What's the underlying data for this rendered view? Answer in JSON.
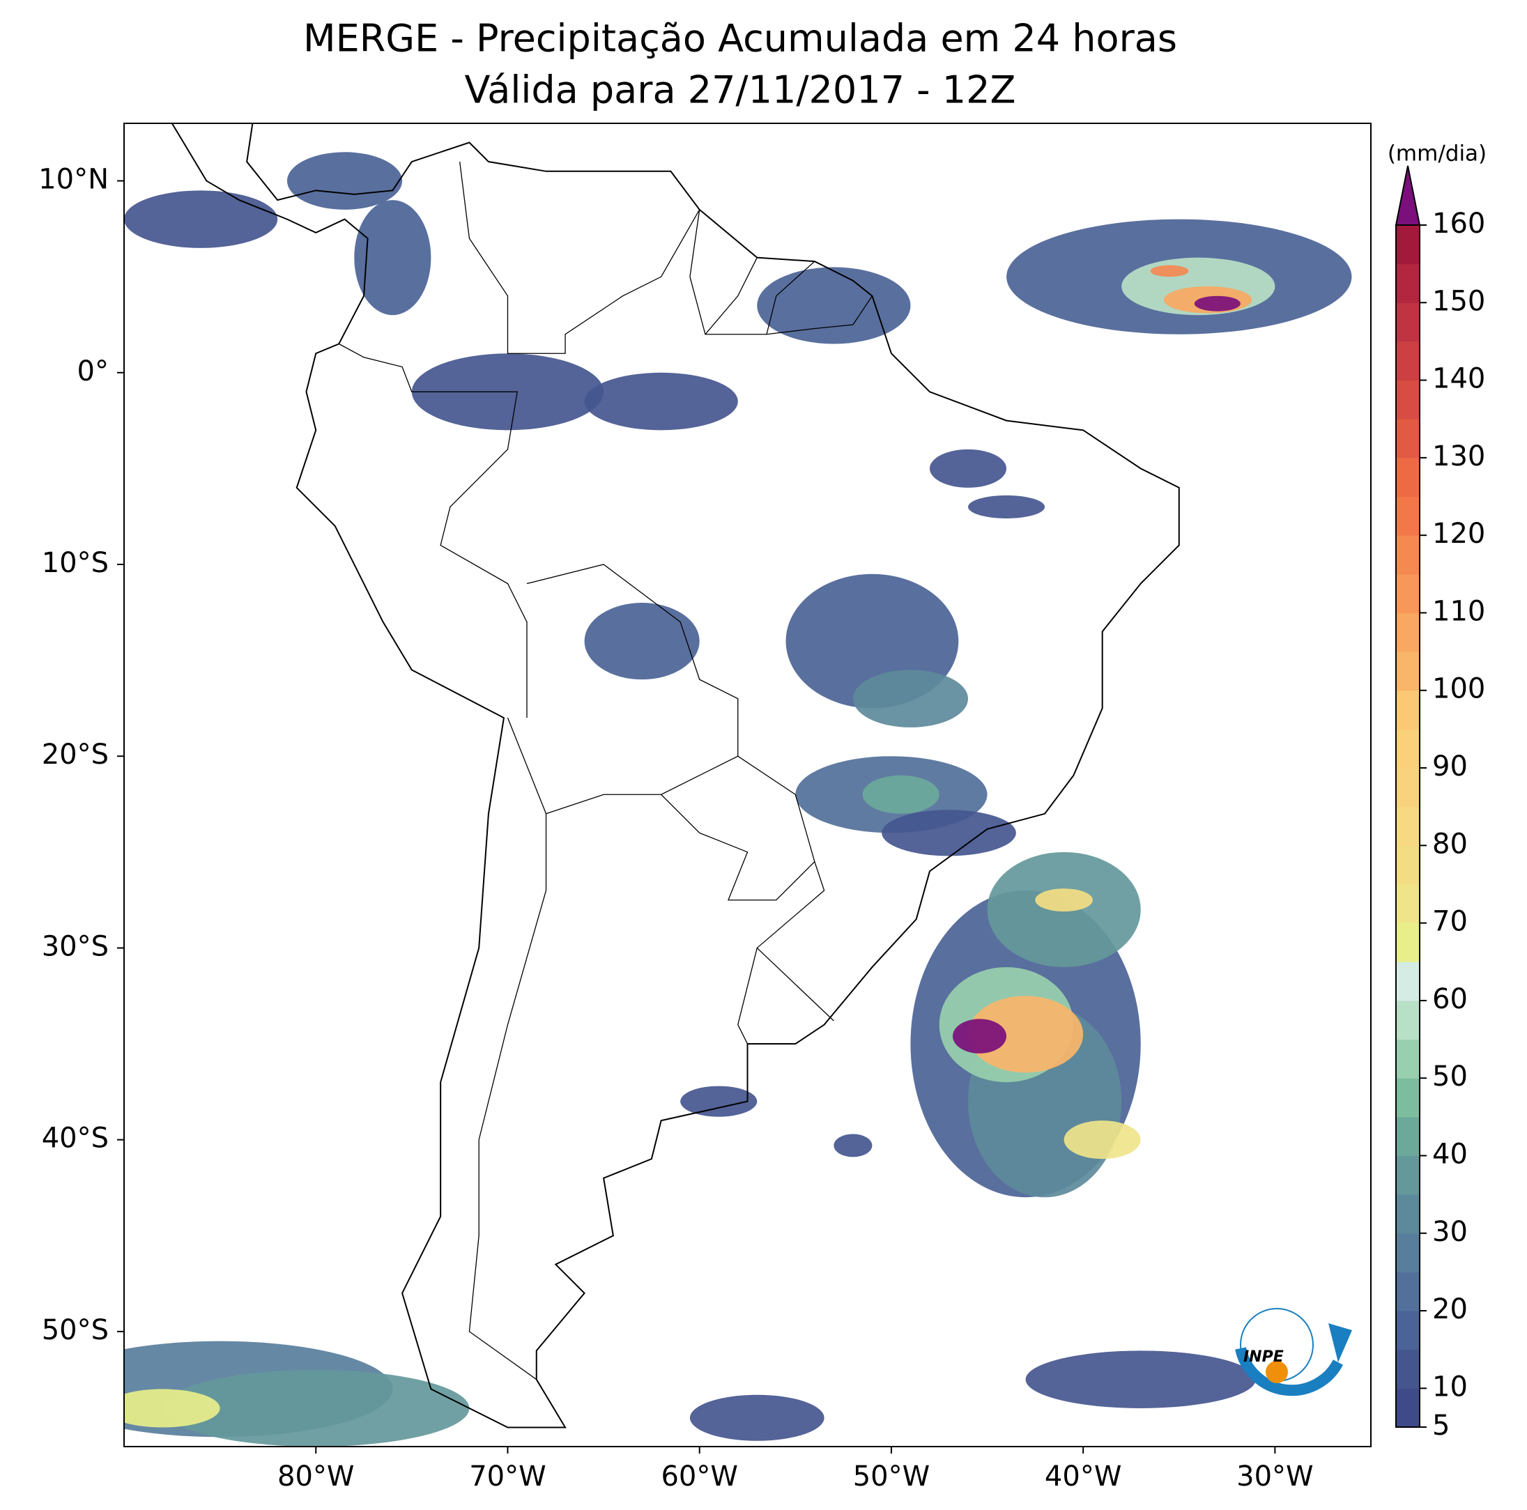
{
  "header": {
    "title": "MERGE - Precipitação Acumulada em 24 horas",
    "subtitle": "Válida para 27/11/2017 - 12Z"
  },
  "map": {
    "xlim": [
      -90,
      -25
    ],
    "ylim": [
      -56,
      13
    ],
    "xticks": [
      {
        "value": -80,
        "label": "80°W"
      },
      {
        "value": -70,
        "label": "70°W"
      },
      {
        "value": -60,
        "label": "60°W"
      },
      {
        "value": -50,
        "label": "50°W"
      },
      {
        "value": -40,
        "label": "40°W"
      },
      {
        "value": -30,
        "label": "30°W"
      }
    ],
    "yticks": [
      {
        "value": 10,
        "label": "10°N"
      },
      {
        "value": 0,
        "label": "0°"
      },
      {
        "value": -10,
        "label": "10°S"
      },
      {
        "value": -20,
        "label": "20°S"
      },
      {
        "value": -30,
        "label": "30°S"
      },
      {
        "value": -40,
        "label": "40°S"
      },
      {
        "value": -50,
        "label": "50°S"
      }
    ]
  },
  "colorbar": {
    "unit": "(mm/dia)",
    "lim": [
      5,
      160
    ],
    "ticks": [
      5,
      10,
      20,
      30,
      40,
      50,
      60,
      70,
      80,
      90,
      100,
      110,
      120,
      130,
      140,
      150,
      160
    ],
    "colors": [
      "#3f4a89",
      "#45568f",
      "#4b6396",
      "#52709a",
      "#587e9c",
      "#5d8a9b",
      "#64989b",
      "#6ca99b",
      "#7cbd9f",
      "#98cfae",
      "#b8e0c6",
      "#d4ece3",
      "#e8ee8a",
      "#efe48a",
      "#f3dd84",
      "#f6d982",
      "#f8d27c",
      "#fad07a",
      "#fbc975",
      "#f9b56a",
      "#f8a862",
      "#f7985a",
      "#f48952",
      "#f2784a",
      "#ee6a45",
      "#e25a43",
      "#d74c43",
      "#cc4044",
      "#c03343",
      "#b22640",
      "#a11a3c"
    ],
    "extend_color": "#7b0f7b"
  },
  "logo": {
    "text": "INPE"
  }
}
